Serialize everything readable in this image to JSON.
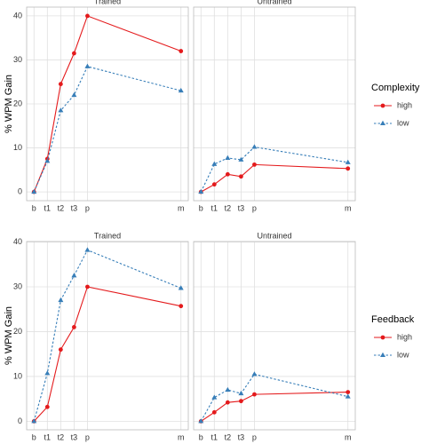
{
  "chart_data": [
    {
      "type": "line",
      "y_label": "% WPM Gain",
      "legend_title": "Complexity",
      "x": [
        0,
        1,
        2,
        3,
        4,
        11
      ],
      "xticks": [
        {
          "value": 0,
          "label": "b"
        },
        {
          "value": 1,
          "label": "t1"
        },
        {
          "value": 2,
          "label": "t2"
        },
        {
          "value": 3,
          "label": "t3"
        },
        {
          "value": 4,
          "label": "p"
        },
        {
          "value": 11,
          "label": "m"
        }
      ],
      "xlim": [
        -0.55,
        11.55
      ],
      "ylim": [
        -2,
        42
      ],
      "yticks": [
        0,
        10,
        20,
        30,
        40
      ],
      "grid": true,
      "series": [
        {
          "name": "high",
          "color": "#e41a1c",
          "dashed": false,
          "marker": "circle"
        },
        {
          "name": "low",
          "color": "#377eb8",
          "dashed": true,
          "marker": "triangle"
        }
      ],
      "facets": [
        {
          "title": "Trained",
          "values": [
            [
              0,
              7.5,
              24.5,
              31.5,
              40,
              32
            ],
            [
              0,
              7,
              18.5,
              22,
              28.5,
              23
            ]
          ]
        },
        {
          "title": "Untrained",
          "values": [
            [
              0,
              1.7,
              4,
              3.5,
              6.2,
              5.3
            ],
            [
              0,
              6.3,
              7.7,
              7.3,
              10.2,
              6.7
            ]
          ]
        }
      ]
    },
    {
      "type": "line",
      "y_label": "% WPM Gain",
      "legend_title": "Feedback",
      "x": [
        0,
        1,
        2,
        3,
        4,
        11
      ],
      "xticks": [
        {
          "value": 0,
          "label": "b"
        },
        {
          "value": 1,
          "label": "t1"
        },
        {
          "value": 2,
          "label": "t2"
        },
        {
          "value": 3,
          "label": "t3"
        },
        {
          "value": 4,
          "label": "p"
        },
        {
          "value": 11,
          "label": "m"
        }
      ],
      "xlim": [
        -0.55,
        11.55
      ],
      "ylim": [
        -1.9,
        40.1
      ],
      "yticks": [
        0,
        10,
        20,
        30,
        40
      ],
      "grid": true,
      "series": [
        {
          "name": "high",
          "color": "#e41a1c",
          "dashed": false,
          "marker": "circle"
        },
        {
          "name": "low",
          "color": "#377eb8",
          "dashed": true,
          "marker": "triangle"
        }
      ],
      "facets": [
        {
          "title": "Trained",
          "values": [
            [
              0,
              3.2,
              16,
              21,
              30,
              25.7
            ],
            [
              0,
              10.7,
              27,
              32.5,
              38.2,
              29.7
            ]
          ]
        },
        {
          "title": "Untrained",
          "values": [
            [
              0,
              2,
              4.2,
              4.5,
              6,
              6.5
            ],
            [
              0,
              5.3,
              7,
              6.2,
              10.5,
              5.5
            ]
          ]
        }
      ]
    }
  ]
}
